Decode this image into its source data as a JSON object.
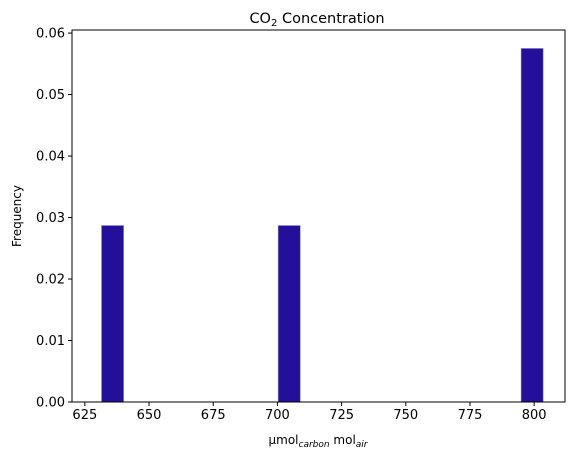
{
  "chart_data": {
    "type": "bar",
    "title": {
      "main": "CO",
      "sub": "2",
      "rest": " Concentration"
    },
    "xlabel": {
      "main": "µmol",
      "sub1": "carbon",
      "mid": " mol",
      "sub2": "air"
    },
    "ylabel": "Frequency",
    "xlim": [
      620,
      812
    ],
    "ylim": [
      0,
      0.0605
    ],
    "xticks": [
      625,
      650,
      675,
      700,
      725,
      750,
      775,
      800
    ],
    "xtick_labels": [
      "625",
      "650",
      "675",
      "700",
      "725",
      "750",
      "775",
      "800"
    ],
    "yticks": [
      0.0,
      0.01,
      0.02,
      0.03,
      0.04,
      0.05,
      0.06
    ],
    "ytick_labels": [
      "0.00",
      "0.01",
      "0.02",
      "0.03",
      "0.04",
      "0.05",
      "0.06"
    ],
    "bin_width": 8.6,
    "bars": [
      {
        "x_start": 631.5,
        "value": 0.0287
      },
      {
        "x_start": 700.3,
        "value": 0.0287
      },
      {
        "x_start": 794.9,
        "value": 0.0575
      }
    ],
    "bar_color": "#230f99",
    "grid": false
  }
}
